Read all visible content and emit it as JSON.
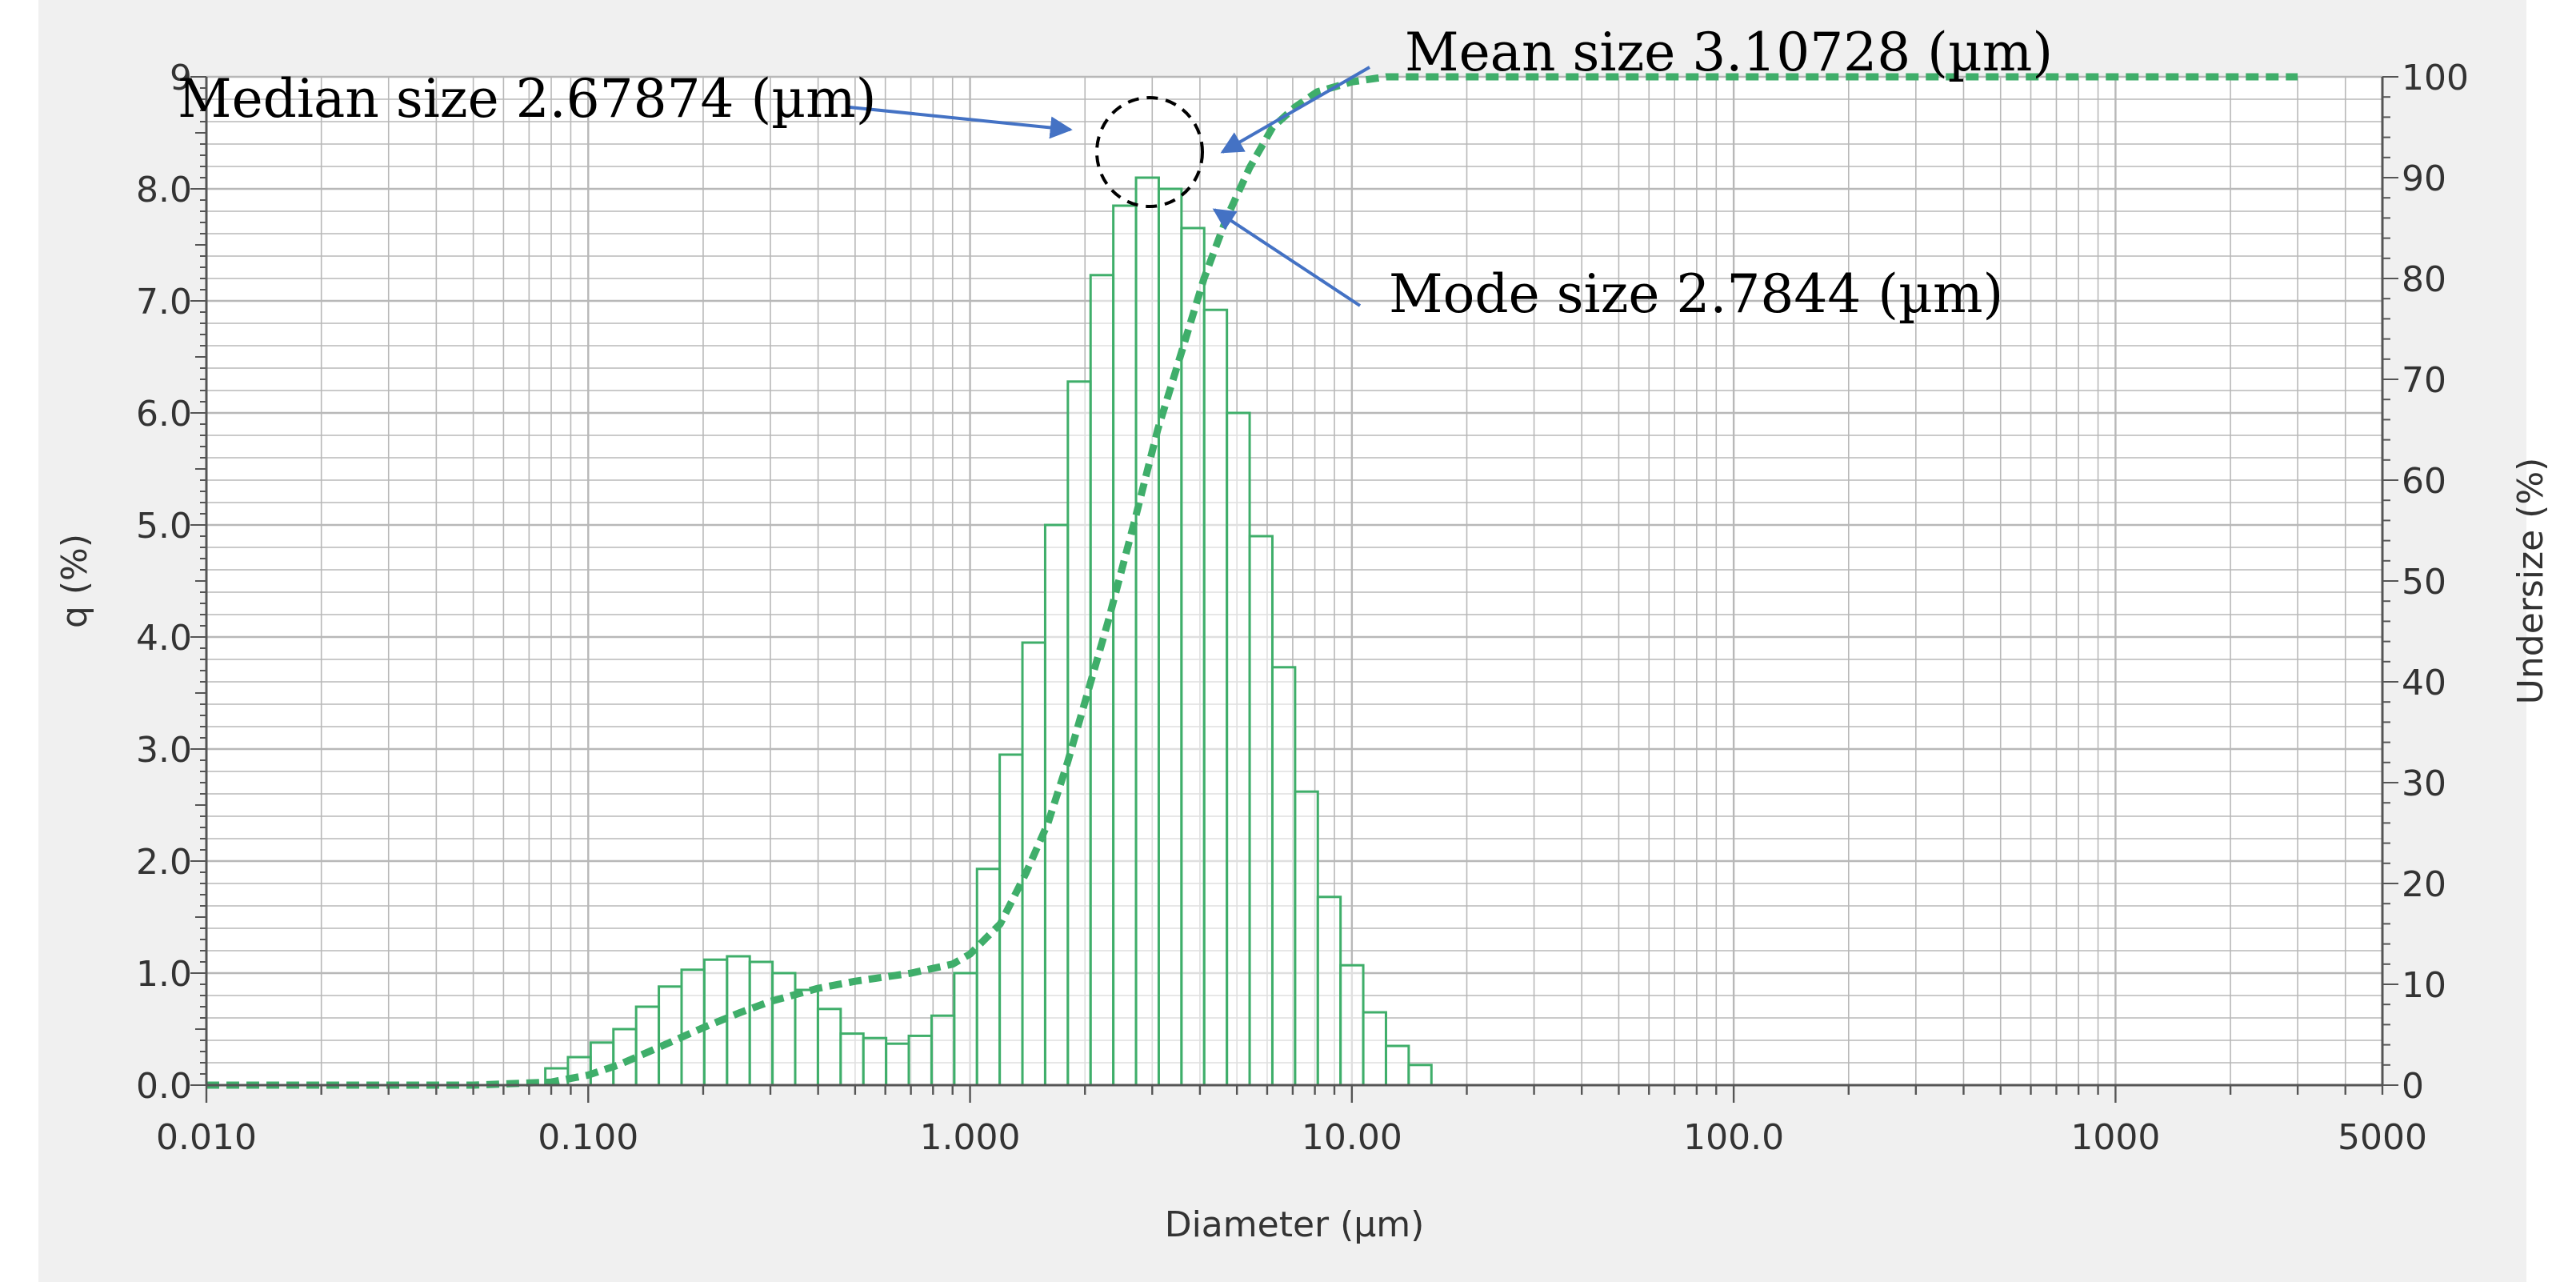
{
  "chart_data": {
    "type": "bar",
    "xlabel": "Diameter (µm)",
    "ylabel_left": "q (%)",
    "ylabel_right": "Undersize (%)",
    "x_scale": "log",
    "xlim": [
      0.01,
      5000
    ],
    "ylim_left": [
      0,
      9
    ],
    "ylim_right": [
      0,
      100
    ],
    "x_tick_labels": [
      {
        "value": 0.01,
        "label": "0.010"
      },
      {
        "value": 0.1,
        "label": "0.100"
      },
      {
        "value": 1,
        "label": "1.000"
      },
      {
        "value": 10,
        "label": "10.00"
      },
      {
        "value": 100,
        "label": "100.0"
      },
      {
        "value": 1000,
        "label": "1000"
      },
      {
        "value": 5000,
        "label": "5000"
      }
    ],
    "y_left_tick_labels": [
      {
        "value": 0,
        "label": "0.0"
      },
      {
        "value": 1,
        "label": "1.0"
      },
      {
        "value": 2,
        "label": "2.0"
      },
      {
        "value": 3,
        "label": "3.0"
      },
      {
        "value": 4,
        "label": "4.0"
      },
      {
        "value": 5,
        "label": "5.0"
      },
      {
        "value": 6,
        "label": "6.0"
      },
      {
        "value": 7,
        "label": "7.0"
      },
      {
        "value": 8,
        "label": "8.0"
      },
      {
        "value": 9,
        "label": "9"
      }
    ],
    "y_right_tick_labels": [
      {
        "value": 0,
        "label": "0"
      },
      {
        "value": 10,
        "label": "10"
      },
      {
        "value": 20,
        "label": "20"
      },
      {
        "value": 30,
        "label": "30"
      },
      {
        "value": 40,
        "label": "40"
      },
      {
        "value": 50,
        "label": "50"
      },
      {
        "value": 60,
        "label": "60"
      },
      {
        "value": 70,
        "label": "70"
      },
      {
        "value": 80,
        "label": "80"
      },
      {
        "value": 90,
        "label": "90"
      },
      {
        "value": 100,
        "label": "100"
      }
    ],
    "grid": true,
    "series": [
      {
        "kind": "histogram",
        "axis": "left",
        "color": "#3fae6a",
        "bars": [
          {
            "x0": 0.0772,
            "x1": 0.0885,
            "y": 0.15
          },
          {
            "x0": 0.0885,
            "x1": 0.1015,
            "y": 0.25
          },
          {
            "x0": 0.1015,
            "x1": 0.1164,
            "y": 0.38
          },
          {
            "x0": 0.1164,
            "x1": 0.1335,
            "y": 0.5
          },
          {
            "x0": 0.1335,
            "x1": 0.1531,
            "y": 0.7
          },
          {
            "x0": 0.1531,
            "x1": 0.1756,
            "y": 0.88
          },
          {
            "x0": 0.1756,
            "x1": 0.2014,
            "y": 1.03
          },
          {
            "x0": 0.2014,
            "x1": 0.231,
            "y": 1.12
          },
          {
            "x0": 0.231,
            "x1": 0.2649,
            "y": 1.15
          },
          {
            "x0": 0.2649,
            "x1": 0.3038,
            "y": 1.1
          },
          {
            "x0": 0.3038,
            "x1": 0.3484,
            "y": 1.0
          },
          {
            "x0": 0.3484,
            "x1": 0.3996,
            "y": 0.85
          },
          {
            "x0": 0.3996,
            "x1": 0.4583,
            "y": 0.68
          },
          {
            "x0": 0.4583,
            "x1": 0.5256,
            "y": 0.46
          },
          {
            "x0": 0.5256,
            "x1": 0.6028,
            "y": 0.42
          },
          {
            "x0": 0.6028,
            "x1": 0.6913,
            "y": 0.37
          },
          {
            "x0": 0.6913,
            "x1": 0.7928,
            "y": 0.44
          },
          {
            "x0": 0.7928,
            "x1": 0.9093,
            "y": 0.62
          },
          {
            "x0": 0.9093,
            "x1": 1.0428,
            "y": 1.0
          },
          {
            "x0": 1.0428,
            "x1": 1.1959,
            "y": 1.93
          },
          {
            "x0": 1.1959,
            "x1": 1.3715,
            "y": 2.95
          },
          {
            "x0": 1.3715,
            "x1": 1.5729,
            "y": 3.95
          },
          {
            "x0": 1.5729,
            "x1": 1.8039,
            "y": 5.0
          },
          {
            "x0": 1.8039,
            "x1": 2.0688,
            "y": 6.28
          },
          {
            "x0": 2.0688,
            "x1": 2.3726,
            "y": 7.23
          },
          {
            "x0": 2.3726,
            "x1": 2.7211,
            "y": 7.85
          },
          {
            "x0": 2.7211,
            "x1": 3.1207,
            "y": 8.1
          },
          {
            "x0": 3.1207,
            "x1": 3.5789,
            "y": 8.0
          },
          {
            "x0": 3.5789,
            "x1": 4.1045,
            "y": 7.65
          },
          {
            "x0": 4.1045,
            "x1": 4.7073,
            "y": 6.92
          },
          {
            "x0": 4.7073,
            "x1": 5.3986,
            "y": 6.0
          },
          {
            "x0": 5.3986,
            "x1": 6.1914,
            "y": 4.9
          },
          {
            "x0": 6.1914,
            "x1": 7.1006,
            "y": 3.73
          },
          {
            "x0": 7.1006,
            "x1": 8.1433,
            "y": 2.62
          },
          {
            "x0": 8.1433,
            "x1": 9.3392,
            "y": 1.68
          },
          {
            "x0": 9.3392,
            "x1": 10.7107,
            "y": 1.07
          },
          {
            "x0": 10.7107,
            "x1": 12.2835,
            "y": 0.65
          },
          {
            "x0": 12.2835,
            "x1": 14.0874,
            "y": 0.35
          },
          {
            "x0": 14.0874,
            "x1": 16.1562,
            "y": 0.18
          }
        ]
      },
      {
        "kind": "cumulative-line",
        "axis": "right",
        "color": "#3fae6a",
        "style": "dashed",
        "points": [
          {
            "x": 0.01,
            "y": 0
          },
          {
            "x": 0.05,
            "y": 0
          },
          {
            "x": 0.08,
            "y": 0.3
          },
          {
            "x": 0.1,
            "y": 1
          },
          {
            "x": 0.12,
            "y": 2
          },
          {
            "x": 0.15,
            "y": 3.6
          },
          {
            "x": 0.2,
            "y": 5.7
          },
          {
            "x": 0.25,
            "y": 7.2
          },
          {
            "x": 0.3,
            "y": 8.3
          },
          {
            "x": 0.4,
            "y": 9.6
          },
          {
            "x": 0.5,
            "y": 10.3
          },
          {
            "x": 0.7,
            "y": 11.1
          },
          {
            "x": 0.9,
            "y": 12
          },
          {
            "x": 1.0,
            "y": 13
          },
          {
            "x": 1.2,
            "y": 16
          },
          {
            "x": 1.4,
            "y": 21
          },
          {
            "x": 1.6,
            "y": 26
          },
          {
            "x": 1.8,
            "y": 32
          },
          {
            "x": 2.0,
            "y": 38
          },
          {
            "x": 2.3,
            "y": 46
          },
          {
            "x": 2.7,
            "y": 56
          },
          {
            "x": 3.1,
            "y": 65
          },
          {
            "x": 3.6,
            "y": 73
          },
          {
            "x": 4.1,
            "y": 80
          },
          {
            "x": 4.7,
            "y": 86
          },
          {
            "x": 5.4,
            "y": 91
          },
          {
            "x": 6.2,
            "y": 95
          },
          {
            "x": 7.1,
            "y": 97
          },
          {
            "x": 8.1,
            "y": 98.5
          },
          {
            "x": 10,
            "y": 99.5
          },
          {
            "x": 12.3,
            "y": 100
          },
          {
            "x": 3000,
            "y": 100
          }
        ]
      }
    ],
    "annotations": [
      {
        "id": "median",
        "text": "Median size 2.67874 (µm)"
      },
      {
        "id": "mean",
        "text": "Mean size 3.10728 (µm)"
      },
      {
        "id": "mode",
        "text": "Mode size 2.7844 (µm)"
      }
    ],
    "colors": {
      "background": "#f0f0f0",
      "plot_background": "#ffffff",
      "grid": "#b8b8b8",
      "axis": "#555555",
      "tick_text": "#333333",
      "histogram": "#3fae6a",
      "cumulative": "#3fae6a",
      "arrow": "#4472c4",
      "annotation_text": "#000000"
    }
  }
}
